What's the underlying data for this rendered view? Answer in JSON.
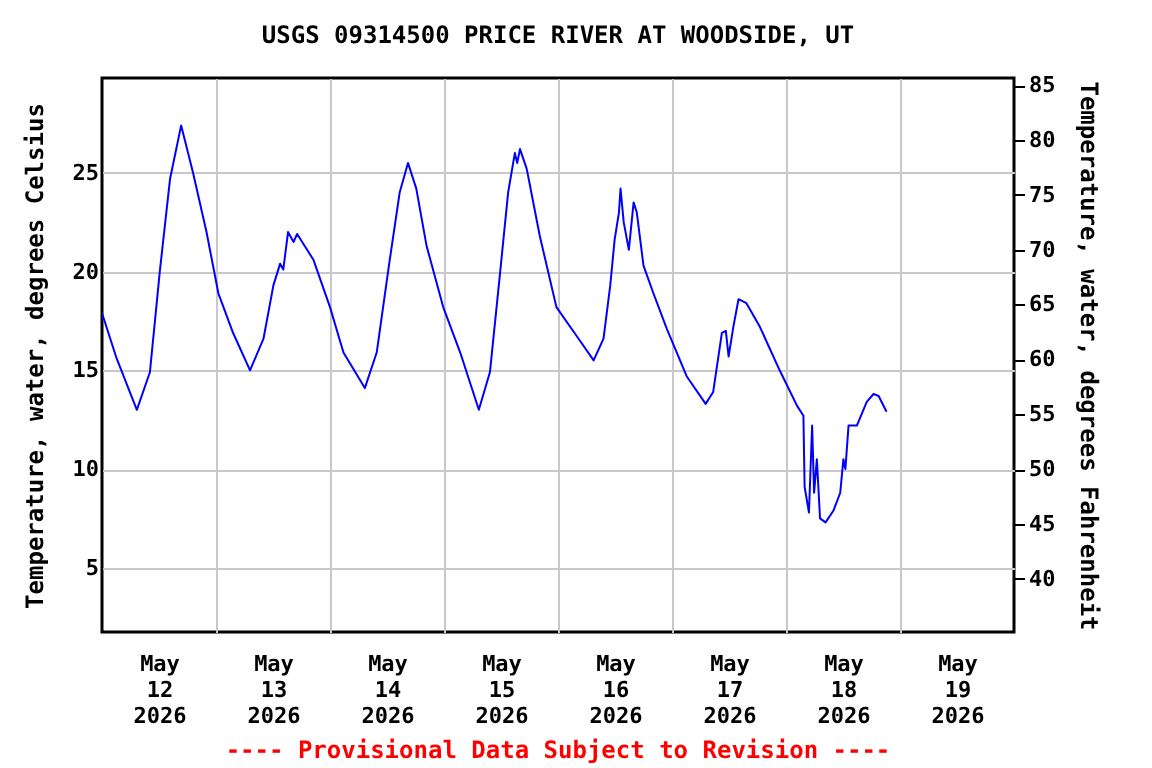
{
  "chart_data": {
    "type": "line",
    "title": "USGS 09314500 PRICE RIVER AT WOODSIDE, UT",
    "ylabel": "Temperature, water, degrees Celsius",
    "y2label": "Temperature, water, degrees Fahrenheit",
    "annotations": [
      "---- Provisional Data Subject to Revision ----"
    ],
    "x": [
      "2026-05-12T00:00",
      "2026-05-12T03:05",
      "2026-05-12T07:20",
      "2026-05-12T10:05",
      "2026-05-12T12:10",
      "2026-05-12T14:20",
      "2026-05-12T16:40",
      "2026-05-12T19:10",
      "2026-05-12T22:00",
      "2026-05-13T00:30",
      "2026-05-13T03:35",
      "2026-05-13T07:10",
      "2026-05-13T10:00",
      "2026-05-13T12:05",
      "2026-05-13T13:30",
      "2026-05-13T14:10",
      "2026-05-13T15:10",
      "2026-05-13T16:20",
      "2026-05-13T17:05",
      "2026-05-13T20:30",
      "2026-05-14T00:00",
      "2026-05-14T02:50",
      "2026-05-14T07:20",
      "2026-05-14T09:50",
      "2026-05-14T12:35",
      "2026-05-14T14:40",
      "2026-05-14T16:25",
      "2026-05-14T18:10",
      "2026-05-14T20:20",
      "2026-05-14T23:50",
      "2026-05-15T03:25",
      "2026-05-15T07:20",
      "2026-05-15T09:40",
      "2026-05-15T11:50",
      "2026-05-15T13:30",
      "2026-05-15T14:55",
      "2026-05-15T15:25",
      "2026-05-15T16:00",
      "2026-05-15T17:25",
      "2026-05-15T20:10",
      "2026-05-15T23:40",
      "2026-05-16T04:20",
      "2026-05-16T07:30",
      "2026-05-16T09:35",
      "2026-05-16T11:00",
      "2026-05-16T11:55",
      "2026-05-16T12:50",
      "2026-05-16T13:10",
      "2026-05-16T13:50",
      "2026-05-16T14:55",
      "2026-05-16T15:55",
      "2026-05-16T16:35",
      "2026-05-16T18:00",
      "2026-05-16T20:05",
      "2026-05-16T22:55",
      "2026-05-17T03:05",
      "2026-05-17T07:05",
      "2026-05-17T08:40",
      "2026-05-17T10:30",
      "2026-05-17T11:20",
      "2026-05-17T11:55",
      "2026-05-17T12:55",
      "2026-05-17T14:00",
      "2026-05-17T15:40",
      "2026-05-17T18:30",
      "2026-05-17T22:40",
      "2026-05-18T02:20",
      "2026-05-18T03:40",
      "2026-05-18T03:55",
      "2026-05-18T04:50",
      "2026-05-18T05:30",
      "2026-05-18T05:55",
      "2026-05-18T06:30",
      "2026-05-18T07:10",
      "2026-05-18T08:20",
      "2026-05-18T10:00",
      "2026-05-18T11:25",
      "2026-05-18T12:05",
      "2026-05-18T12:30",
      "2026-05-18T13:10",
      "2026-05-18T14:55",
      "2026-05-18T17:00",
      "2026-05-18T18:25",
      "2026-05-18T19:30",
      "2026-05-18T21:10"
    ],
    "series": [
      {
        "color": "#0000ff",
        "axis": "y",
        "values": [
          17.9,
          15.6,
          13.0,
          14.9,
          20.0,
          24.7,
          27.4,
          25.0,
          22.0,
          18.9,
          16.9,
          15.0,
          16.6,
          19.3,
          20.4,
          20.1,
          22.0,
          21.5,
          21.9,
          20.6,
          18.2,
          15.9,
          14.1,
          15.9,
          20.6,
          24.0,
          25.5,
          24.2,
          21.3,
          18.2,
          15.9,
          13.0,
          14.9,
          20.0,
          24.0,
          26.0,
          25.5,
          26.2,
          25.2,
          21.8,
          18.2,
          16.6,
          15.5,
          16.6,
          19.3,
          21.6,
          23.0,
          24.2,
          22.5,
          21.1,
          23.5,
          23.0,
          20.3,
          18.9,
          17.1,
          14.7,
          13.3,
          13.9,
          16.9,
          17.0,
          15.7,
          17.2,
          18.6,
          18.4,
          17.2,
          15.0,
          13.2,
          12.7,
          9.1,
          7.8,
          12.2,
          8.8,
          10.5,
          7.5,
          7.3,
          7.9,
          8.8,
          10.5,
          10.0,
          12.2,
          12.2,
          13.4,
          13.8,
          13.7,
          12.9
        ]
      }
    ],
    "xlim": [
      "2026-05-12T00:00",
      "2026-05-20T00:00"
    ],
    "xticks": [
      {
        "value": "2026-05-12T12:00",
        "label": "May\n12\n2026"
      },
      {
        "value": "2026-05-13T00:00",
        "label": null
      },
      {
        "value": "2026-05-13T12:00",
        "label": "May\n13\n2026"
      },
      {
        "value": "2026-05-14T00:00",
        "label": null
      },
      {
        "value": "2026-05-14T12:00",
        "label": "May\n14\n2026"
      },
      {
        "value": "2026-05-15T00:00",
        "label": null
      },
      {
        "value": "2026-05-15T12:00",
        "label": "May\n15\n2026"
      },
      {
        "value": "2026-05-16T00:00",
        "label": null
      },
      {
        "value": "2026-05-16T12:00",
        "label": "May\n16\n2026"
      },
      {
        "value": "2026-05-17T00:00",
        "label": null
      },
      {
        "value": "2026-05-17T12:00",
        "label": "May\n17\n2026"
      },
      {
        "value": "2026-05-18T00:00",
        "label": null
      },
      {
        "value": "2026-05-18T12:00",
        "label": "May\n18\n2026"
      },
      {
        "value": "2026-05-19T00:00",
        "label": null
      },
      {
        "value": "2026-05-19T12:00",
        "label": "May\n19\n2026"
      }
    ],
    "ylim": [
      1.75,
      29.8
    ],
    "yticks": [
      5,
      10,
      15,
      20,
      25
    ],
    "y2lim": [
      35.15,
      85.64
    ],
    "y2ticks": [
      40,
      45,
      50,
      55,
      60,
      65,
      70,
      75,
      80,
      85
    ],
    "grid": true,
    "line_style": "solid"
  }
}
